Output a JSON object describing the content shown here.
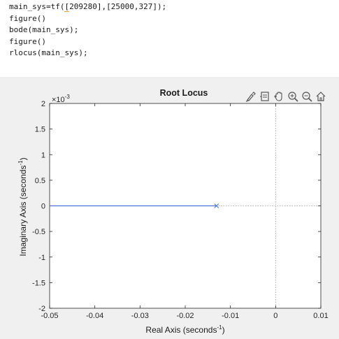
{
  "code": {
    "lines": [
      {
        "pre": "main_sys=tf(",
        "hl": "[",
        "post": "209280],[25000,327]);"
      },
      {
        "pre": "figure()",
        "hl": "",
        "post": ""
      },
      {
        "pre": "bode(main_sys);",
        "hl": "",
        "post": ""
      },
      {
        "pre": "figure()",
        "hl": "",
        "post": ""
      },
      {
        "pre": "rlocus(main_sys);",
        "hl": "",
        "post": ""
      }
    ]
  },
  "toolbar": {
    "icons": [
      "brush-icon",
      "data-cursor-icon",
      "pan-hand-icon",
      "zoom-in-icon",
      "zoom-out-icon",
      "home-icon"
    ]
  },
  "chart_data": {
    "type": "line",
    "title": "Root Locus",
    "xlabel": "Real Axis (seconds",
    "xlabel_sup": "-1",
    "ylabel": "Imaginary Axis (seconds",
    "ylabel_sup": "-1",
    "y_multiplier": "×10",
    "y_multiplier_exp": "-3",
    "xlim": [
      -0.05,
      0.01
    ],
    "ylim": [
      -2,
      2
    ],
    "xticks": [
      -0.05,
      -0.04,
      -0.03,
      -0.02,
      -0.01,
      0,
      0.01
    ],
    "xtick_labels": [
      "-0.05",
      "-0.04",
      "-0.03",
      "-0.02",
      "-0.01",
      "0",
      "0.01"
    ],
    "yticks": [
      2,
      1.5,
      1,
      0.5,
      0,
      -0.5,
      -1,
      -1.5,
      -2
    ],
    "ytick_labels": [
      "2",
      "1.5",
      "1",
      "0.5",
      "0",
      "-0.5",
      "-1",
      "-1.5",
      "-2"
    ],
    "grid": false,
    "locus": {
      "x": [
        -0.05,
        -0.01308
      ],
      "y": [
        0,
        0
      ],
      "color": "#4a72d6"
    },
    "pole": {
      "x": -0.01308,
      "y": 0,
      "marker": "x",
      "color": "#4a72d6"
    },
    "guides": {
      "x_zero": 0,
      "y_zero": 0,
      "color": "#9a9a9a",
      "style": "dotted"
    }
  }
}
